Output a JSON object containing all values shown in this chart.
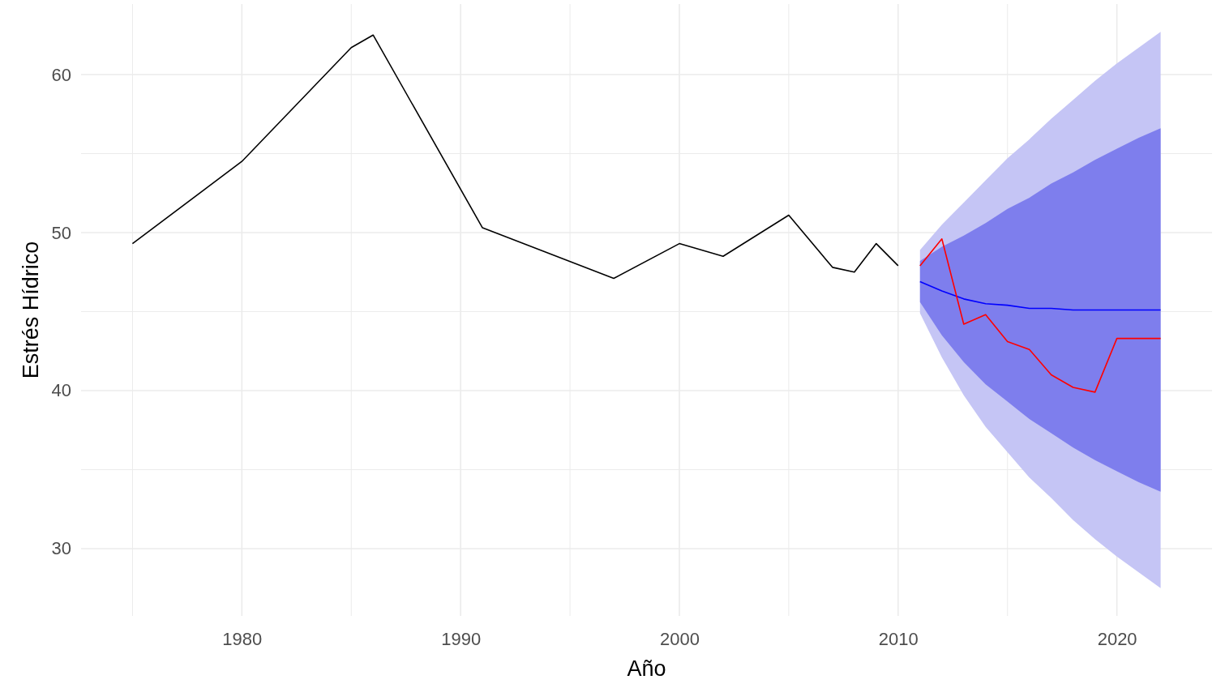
{
  "chart_data": {
    "type": "line",
    "xlabel": "Año",
    "ylabel": "Estrés Hídrico",
    "xlim": [
      1972.65,
      2024.35
    ],
    "ylim": [
      25.74,
      64.46
    ],
    "xticks": [
      {
        "value": 1975,
        "label": null
      },
      1980,
      {
        "value": 1985,
        "label": null
      },
      1990,
      {
        "value": 1995,
        "label": null
      },
      2000,
      {
        "value": 2005,
        "label": null
      },
      2010,
      {
        "value": 2015,
        "label": null
      },
      2020
    ],
    "yticks": [
      30,
      {
        "value": 35,
        "label": null
      },
      40,
      {
        "value": 45,
        "label": null
      },
      50,
      {
        "value": 55,
        "label": null
      },
      60
    ],
    "grid": true,
    "line_style": "solid",
    "marker": "none",
    "series": [
      {
        "color": "#000000",
        "x": [
          1975,
          1980,
          1985,
          1986,
          1991,
          1997,
          2000,
          2002,
          2005,
          2007,
          2008,
          2009,
          2010
        ],
        "values": [
          49.3,
          54.5,
          61.7,
          62.5,
          50.3,
          47.1,
          49.3,
          48.5,
          51.1,
          47.8,
          47.5,
          49.3,
          47.9
        ]
      },
      {
        "color": "#c5c5f5",
        "x": [
          2011,
          2012,
          2013,
          2014,
          2015,
          2016,
          2017,
          2018,
          2019,
          2020,
          2021,
          2022
        ],
        "values": [
          null,
          null,
          null,
          null,
          null,
          null,
          null,
          null,
          null,
          null,
          null,
          null
        ],
        "lower": [
          44.9,
          42.1,
          39.7,
          37.7,
          36.1,
          34.5,
          33.2,
          31.8,
          30.6,
          29.5,
          28.5,
          27.5
        ],
        "upper": [
          48.9,
          50.5,
          51.9,
          53.3,
          54.7,
          55.9,
          57.2,
          58.4,
          59.6,
          60.7,
          61.7,
          62.7
        ]
      },
      {
        "color": "#0000ff",
        "x": [
          2011,
          2012,
          2013,
          2014,
          2015,
          2016,
          2017,
          2018,
          2019,
          2020,
          2021,
          2022
        ],
        "values": [
          46.9,
          46.3,
          45.8,
          45.5,
          45.4,
          45.2,
          45.2,
          45.1,
          45.1,
          45.1,
          45.1,
          45.1
        ],
        "lower": [
          45.6,
          43.5,
          41.8,
          40.4,
          39.3,
          38.2,
          37.3,
          36.4,
          35.6,
          34.9,
          34.2,
          33.6
        ],
        "upper": [
          48.2,
          49.1,
          49.8,
          50.6,
          51.5,
          52.2,
          53.1,
          53.8,
          54.6,
          55.3,
          56.0,
          56.6
        ]
      },
      {
        "color": "#ff0000",
        "x": [
          2011,
          2012,
          2013,
          2014,
          2015,
          2016,
          2017,
          2018,
          2019,
          2020,
          2021,
          2022
        ],
        "values": [
          47.9,
          49.6,
          44.2,
          44.8,
          43.1,
          42.6,
          41.0,
          40.2,
          39.9,
          43.3,
          43.3,
          43.3
        ]
      }
    ]
  }
}
